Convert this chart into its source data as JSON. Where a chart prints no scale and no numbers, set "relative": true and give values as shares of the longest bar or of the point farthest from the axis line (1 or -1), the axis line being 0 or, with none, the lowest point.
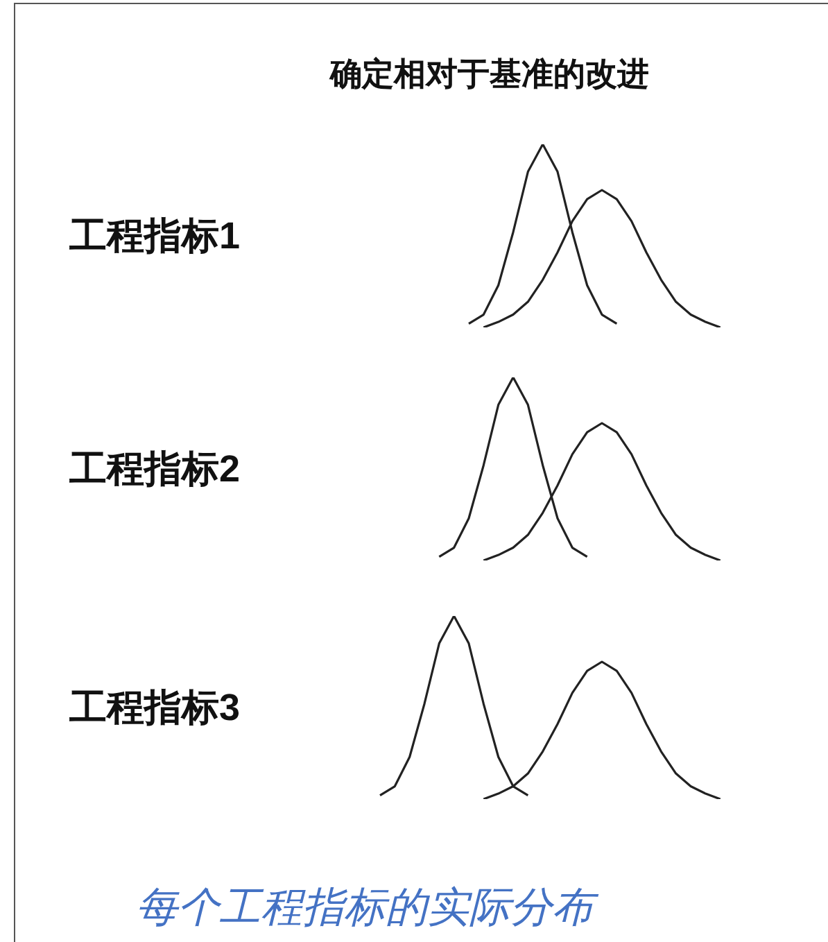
{
  "chart_data": [
    {
      "type": "line",
      "title": "确定相对于基准的改进",
      "ylabel": "工程指标1",
      "relative": true,
      "categories": [
        null,
        null,
        null,
        null,
        null,
        null,
        null,
        null,
        null,
        null,
        null,
        null,
        null,
        null,
        null,
        null,
        null,
        null,
        null,
        null,
        null,
        null,
        null,
        null,
        null
      ],
      "series": [
        {
          "color": "#222222",
          "values": [
            null,
            null,
            null,
            null,
            null,
            null,
            0.02,
            0.07,
            0.23,
            0.52,
            0.85,
            1,
            0.85,
            0.52,
            0.23,
            0.07,
            0.02,
            null,
            null,
            null,
            null,
            null,
            null,
            null,
            null
          ]
        },
        {
          "color": "#222222",
          "values": [
            null,
            null,
            null,
            null,
            null,
            null,
            null,
            0,
            0.03,
            0.07,
            0.14,
            0.26,
            0.41,
            0.58,
            0.7,
            0.75,
            0.7,
            0.58,
            0.41,
            0.26,
            0.14,
            0.07,
            0.03,
            0,
            null
          ]
        }
      ]
    },
    {
      "type": "line",
      "ylabel": "工程指标2",
      "relative": true,
      "categories": [
        null,
        null,
        null,
        null,
        null,
        null,
        null,
        null,
        null,
        null,
        null,
        null,
        null,
        null,
        null,
        null,
        null,
        null,
        null,
        null,
        null,
        null,
        null,
        null,
        null
      ],
      "series": [
        {
          "color": "#222222",
          "values": [
            null,
            null,
            null,
            null,
            0.02,
            0.07,
            0.23,
            0.52,
            0.85,
            1,
            0.85,
            0.52,
            0.23,
            0.07,
            0.02,
            null,
            null,
            null,
            null,
            null,
            null,
            null,
            null,
            null,
            null
          ]
        },
        {
          "color": "#222222",
          "values": [
            null,
            null,
            null,
            null,
            null,
            null,
            null,
            0,
            0.03,
            0.07,
            0.14,
            0.26,
            0.41,
            0.58,
            0.7,
            0.75,
            0.7,
            0.58,
            0.41,
            0.26,
            0.14,
            0.07,
            0.03,
            0,
            null
          ]
        }
      ]
    },
    {
      "type": "line",
      "ylabel": "工程指标3",
      "relative": true,
      "annotations": [
        "每个工程指标的实际分布"
      ],
      "categories": [
        null,
        null,
        null,
        null,
        null,
        null,
        null,
        null,
        null,
        null,
        null,
        null,
        null,
        null,
        null,
        null,
        null,
        null,
        null,
        null,
        null,
        null,
        null,
        null,
        null
      ],
      "series": [
        {
          "color": "#222222",
          "values": [
            0.02,
            0.07,
            0.23,
            0.52,
            0.85,
            1,
            0.85,
            0.52,
            0.23,
            0.07,
            0.02,
            null,
            null,
            null,
            null,
            null,
            null,
            null,
            null,
            null,
            null,
            null,
            null,
            null,
            null
          ]
        },
        {
          "color": "#222222",
          "values": [
            null,
            null,
            null,
            null,
            null,
            null,
            null,
            0,
            0.03,
            0.07,
            0.14,
            0.26,
            0.41,
            0.58,
            0.7,
            0.75,
            0.7,
            0.58,
            0.41,
            0.26,
            0.14,
            0.07,
            0.03,
            0,
            null
          ]
        }
      ]
    }
  ]
}
